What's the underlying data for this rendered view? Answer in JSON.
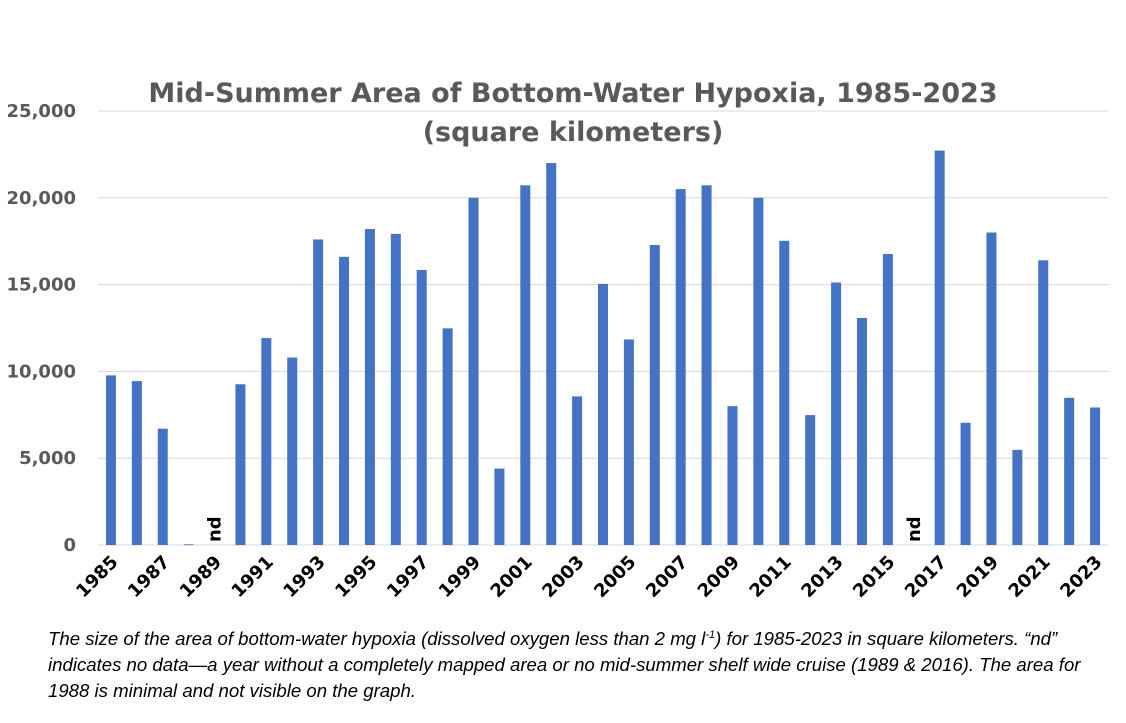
{
  "chart_data": {
    "type": "bar",
    "title_line1": "Mid-Summer Area of Bottom-Water Hypoxia, 1985-2023",
    "title_line2": "(square kilometers)",
    "xlabel": "",
    "ylabel": "",
    "ylim": [
      0,
      25000
    ],
    "yticks": [
      0,
      5000,
      10000,
      15000,
      20000,
      25000
    ],
    "ytick_labels": [
      "0",
      "5,000",
      "10,000",
      "15,000",
      "20,000",
      "25,000"
    ],
    "grid": true,
    "bar_color": "#4472C4",
    "categories": [
      "1985",
      "1986",
      "1987",
      "1988",
      "1989",
      "1990",
      "1991",
      "1992",
      "1993",
      "1994",
      "1995",
      "1996",
      "1997",
      "1998",
      "1999",
      "2000",
      "2001",
      "2002",
      "2003",
      "2004",
      "2005",
      "2006",
      "2007",
      "2008",
      "2009",
      "2010",
      "2011",
      "2012",
      "2013",
      "2014",
      "2015",
      "2016",
      "2017",
      "2018",
      "2019",
      "2020",
      "2021",
      "2022",
      "2023"
    ],
    "xtick_labels": [
      "1985",
      "1987",
      "1989",
      "1991",
      "1993",
      "1995",
      "1997",
      "1999",
      "2001",
      "2003",
      "2005",
      "2007",
      "2009",
      "2011",
      "2013",
      "2015",
      "2017",
      "2019",
      "2021",
      "2023"
    ],
    "values": [
      9770,
      9440,
      6700,
      40,
      null,
      9260,
      11920,
      10800,
      17600,
      16600,
      18200,
      17920,
      15840,
      12480,
      20000,
      4400,
      20720,
      22000,
      8560,
      15040,
      11840,
      17280,
      20500,
      20720,
      8000,
      20000,
      17520,
      7480,
      15120,
      13080,
      16760,
      null,
      22720,
      7040,
      18000,
      5480,
      16400,
      8480,
      7920
    ],
    "annotations": [
      {
        "category": "1989",
        "text": "nd"
      },
      {
        "category": "2016",
        "text": "nd"
      }
    ]
  },
  "caption": {
    "part1": "The size of the area of bottom-water hypoxia (dissolved oxygen less than 2 mg l",
    "sup": "-1",
    "part2": ") for 1985-2023 in square kilometers. “nd” indicates no data—a year without a completely mapped area or no mid-summer shelf wide cruise (1989 & 2016). The area for 1988 is minimal and not visible on the graph."
  }
}
